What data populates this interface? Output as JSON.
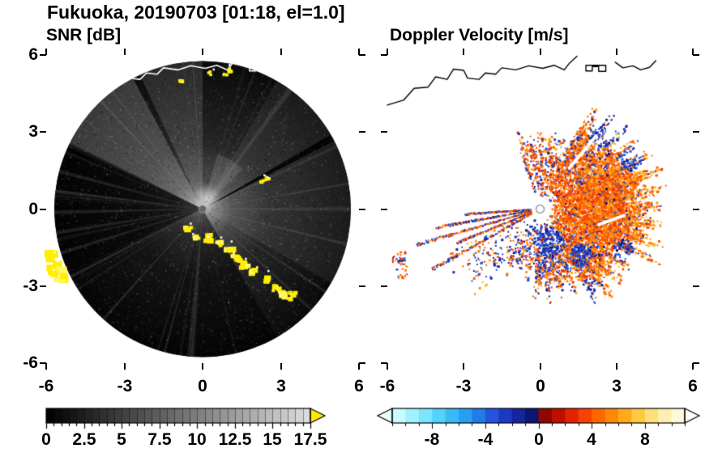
{
  "figure": {
    "title": "Fukuoka, 20190703 [01:18, el=1.0]"
  },
  "chart_data": [
    {
      "type": "heatmap",
      "panel": "left",
      "title": "SNR [dB]",
      "xlim": [
        -6,
        6
      ],
      "ylim": [
        -6,
        6
      ],
      "xticks": [
        -6,
        -3,
        0,
        3,
        6
      ],
      "yticks": [
        6,
        3,
        0,
        -3,
        -6
      ],
      "xtick_labels": [
        "-6",
        "-3",
        "0",
        "3",
        "6"
      ],
      "ytick_labels": [
        "6",
        "3",
        "0",
        "-3",
        "-6"
      ],
      "grid": false,
      "scan_disk": {
        "center": [
          0,
          0
        ],
        "radius": 5.75,
        "base_color": "#000000"
      },
      "colorbar": {
        "range": [
          0,
          17.5
        ],
        "tick_step": 2.5,
        "minor_step": 0.5,
        "tick_labels": [
          "0",
          "2.5",
          "5",
          "7.5",
          "10",
          "12.5",
          "15",
          "17.5"
        ],
        "colormap": "black-to-light-gray grayscale",
        "stops": [
          {
            "v": 0,
            "c": "#000000"
          },
          {
            "v": 17.5,
            "c": "#dedede"
          }
        ],
        "over_arrow_color": "#ffe800"
      },
      "features": {
        "bright_fan_az": [
          295,
          332
        ],
        "dark_sectors_az": [
          [
            245,
            297
          ],
          [
            197,
            245
          ],
          [
            150,
            197
          ]
        ],
        "shadow_ray_az": 61,
        "clutter_color": "#ffee00",
        "clutter_arc": [
          [
            -0.65,
            -0.75
          ],
          [
            -0.3,
            -0.95
          ],
          [
            0.1,
            -1.05
          ],
          [
            0.5,
            -1.3
          ],
          [
            0.9,
            -1.45
          ],
          [
            1.2,
            -1.8
          ],
          [
            1.5,
            -2.1
          ],
          [
            1.9,
            -2.35
          ],
          [
            2.3,
            -2.6
          ],
          [
            2.7,
            -3.0
          ],
          [
            3.05,
            -3.25
          ],
          [
            3.35,
            -3.3
          ]
        ],
        "clutter_blobs_large": [
          [
            -5.85,
            -1.75
          ],
          [
            -5.78,
            -2.1
          ],
          [
            -5.68,
            -2.45
          ]
        ],
        "clutter_dashes": [
          [
            2.2,
            1.15
          ],
          [
            2.45,
            1.25
          ],
          [
            0.2,
            5.35
          ],
          [
            0.8,
            5.25
          ],
          [
            1.0,
            5.45
          ],
          [
            -0.85,
            5.05
          ]
        ]
      }
    },
    {
      "type": "heatmap",
      "panel": "right",
      "title": "Doppler Velocity [m/s]",
      "xlim": [
        -6,
        6
      ],
      "ylim": [
        -6,
        6
      ],
      "xticks": [
        -6,
        -3,
        0,
        3,
        6
      ],
      "yticks": [
        6,
        3,
        0,
        -3,
        -6
      ],
      "xtick_labels": [
        "-6",
        "-3",
        "0",
        "3",
        "6"
      ],
      "grid": false,
      "colorbar": {
        "range": [
          -11,
          11
        ],
        "tick_step": 4,
        "minor_step": 1,
        "tick_labels": [
          "-8",
          "-4",
          "0",
          "4",
          "8"
        ],
        "colormap": "diverging: cyan-blue-navy (negative) / darkred-red-orange-yellow-white (positive)",
        "stops_neg": [
          {
            "v": -11,
            "c": "#ddffff"
          },
          {
            "v": -9,
            "c": "#8ceeff"
          },
          {
            "v": -7,
            "c": "#40c8fa"
          },
          {
            "v": -5,
            "c": "#2090ec"
          },
          {
            "v": -3.5,
            "c": "#2454de"
          },
          {
            "v": -2,
            "c": "#1a2cb2"
          },
          {
            "v": -0.8,
            "c": "#101880"
          },
          {
            "v": 0,
            "c": "#090d58"
          }
        ],
        "stops_pos": [
          {
            "v": 0,
            "c": "#760606"
          },
          {
            "v": 1,
            "c": "#a80800"
          },
          {
            "v": 2,
            "c": "#d61400"
          },
          {
            "v": 3,
            "c": "#f03000"
          },
          {
            "v": 4,
            "c": "#ff5400"
          },
          {
            "v": 5,
            "c": "#ff7600"
          },
          {
            "v": 6,
            "c": "#ff980c"
          },
          {
            "v": 7,
            "c": "#ffbc2c"
          },
          {
            "v": 8,
            "c": "#ffd65c"
          },
          {
            "v": 9,
            "c": "#ffe896"
          },
          {
            "v": 10,
            "c": "#fff4cb"
          },
          {
            "v": 11,
            "c": "#fffbe8"
          }
        ],
        "under_arrow_color": "#eaffff",
        "over_arrow_color": "#fffdf2"
      },
      "features": {
        "echo_regions": [
          {
            "az": [
              340,
              385
            ],
            "max_r": 3.2,
            "density": 0.32,
            "blue_p": 0.3
          },
          {
            "az": [
              25,
              60
            ],
            "max_r": 4.7,
            "density": 0.55,
            "blue_p": 0.18
          },
          {
            "az": [
              60,
              115
            ],
            "max_r": 5.05,
            "density": 0.8,
            "blue_p": 0.07
          },
          {
            "az": [
              115,
              150
            ],
            "max_r": 4.45,
            "density": 0.65,
            "blue_p": 0.14
          },
          {
            "az": [
              150,
              185
            ],
            "max_r": 3.7,
            "density": 0.45,
            "blue_p": 0.35
          },
          {
            "az": [
              185,
              215
            ],
            "max_r": 3.0,
            "density": 0.22,
            "blue_p": 0.5
          },
          {
            "az": [
              215,
              245
            ],
            "max_r": 4.6,
            "density": 0.07,
            "blue_p": 0.45
          }
        ],
        "blue_pockets": [
          [
            0.35,
            -1.3,
            0.6
          ],
          [
            1.6,
            -1.8,
            0.45
          ],
          [
            2.4,
            2.9,
            0.5
          ],
          [
            -0.4,
            -0.4,
            0.5
          ],
          [
            2.9,
            3.2,
            0.6
          ],
          [
            3.6,
            2.0,
            0.5
          ],
          [
            2.0,
            -3.2,
            0.5
          ],
          [
            3.3,
            -1.6,
            0.45
          ]
        ],
        "spike_azimuths": [
          241,
          248,
          254,
          260,
          266
        ],
        "spike_max_r": [
          4.5,
          3.2,
          4.7,
          3.8,
          2.6
        ],
        "isolated_blobs": [
          [
            -5.55,
            -1.9
          ],
          [
            -5.45,
            -2.45
          ]
        ],
        "clear_slashes": [
          [
            [
              0.7,
              2.1
            ],
            [
              1.7,
              3.5
            ]
          ],
          [
            [
              1.15,
              1.6
            ],
            [
              2.2,
              2.85
            ]
          ],
          [
            [
              2.3,
              -0.6
            ],
            [
              3.3,
              -0.25
            ]
          ]
        ]
      }
    }
  ],
  "coastline": {
    "color_left": "#ffffff",
    "color_right": "#000000",
    "segments": [
      [
        [
          -6.0,
          4.05
        ],
        [
          -5.35,
          4.25
        ],
        [
          -4.95,
          4.7
        ],
        [
          -4.4,
          4.75
        ],
        [
          -4.1,
          5.15
        ],
        [
          -3.65,
          5.05
        ],
        [
          -3.4,
          5.45
        ],
        [
          -3.0,
          5.4
        ],
        [
          -2.85,
          5.1
        ],
        [
          -2.4,
          5.05
        ],
        [
          -2.15,
          5.3
        ],
        [
          -1.75,
          5.25
        ],
        [
          -1.5,
          5.5
        ],
        [
          -0.95,
          5.42
        ],
        [
          -0.45,
          5.58
        ],
        [
          0.1,
          5.48
        ],
        [
          0.55,
          5.6
        ],
        [
          0.95,
          5.42
        ],
        [
          1.15,
          5.68
        ],
        [
          1.45,
          5.95
        ]
      ],
      [
        [
          1.8,
          5.6
        ],
        [
          1.8,
          5.38
        ],
        [
          2.05,
          5.38
        ],
        [
          2.05,
          5.55
        ],
        [
          2.3,
          5.55
        ],
        [
          2.3,
          5.36
        ],
        [
          2.58,
          5.36
        ],
        [
          2.58,
          5.6
        ],
        [
          1.8,
          5.6
        ]
      ],
      [
        [
          2.95,
          5.72
        ],
        [
          3.25,
          5.5
        ],
        [
          3.65,
          5.58
        ],
        [
          3.95,
          5.42
        ],
        [
          4.3,
          5.52
        ],
        [
          4.55,
          5.78
        ]
      ]
    ]
  }
}
